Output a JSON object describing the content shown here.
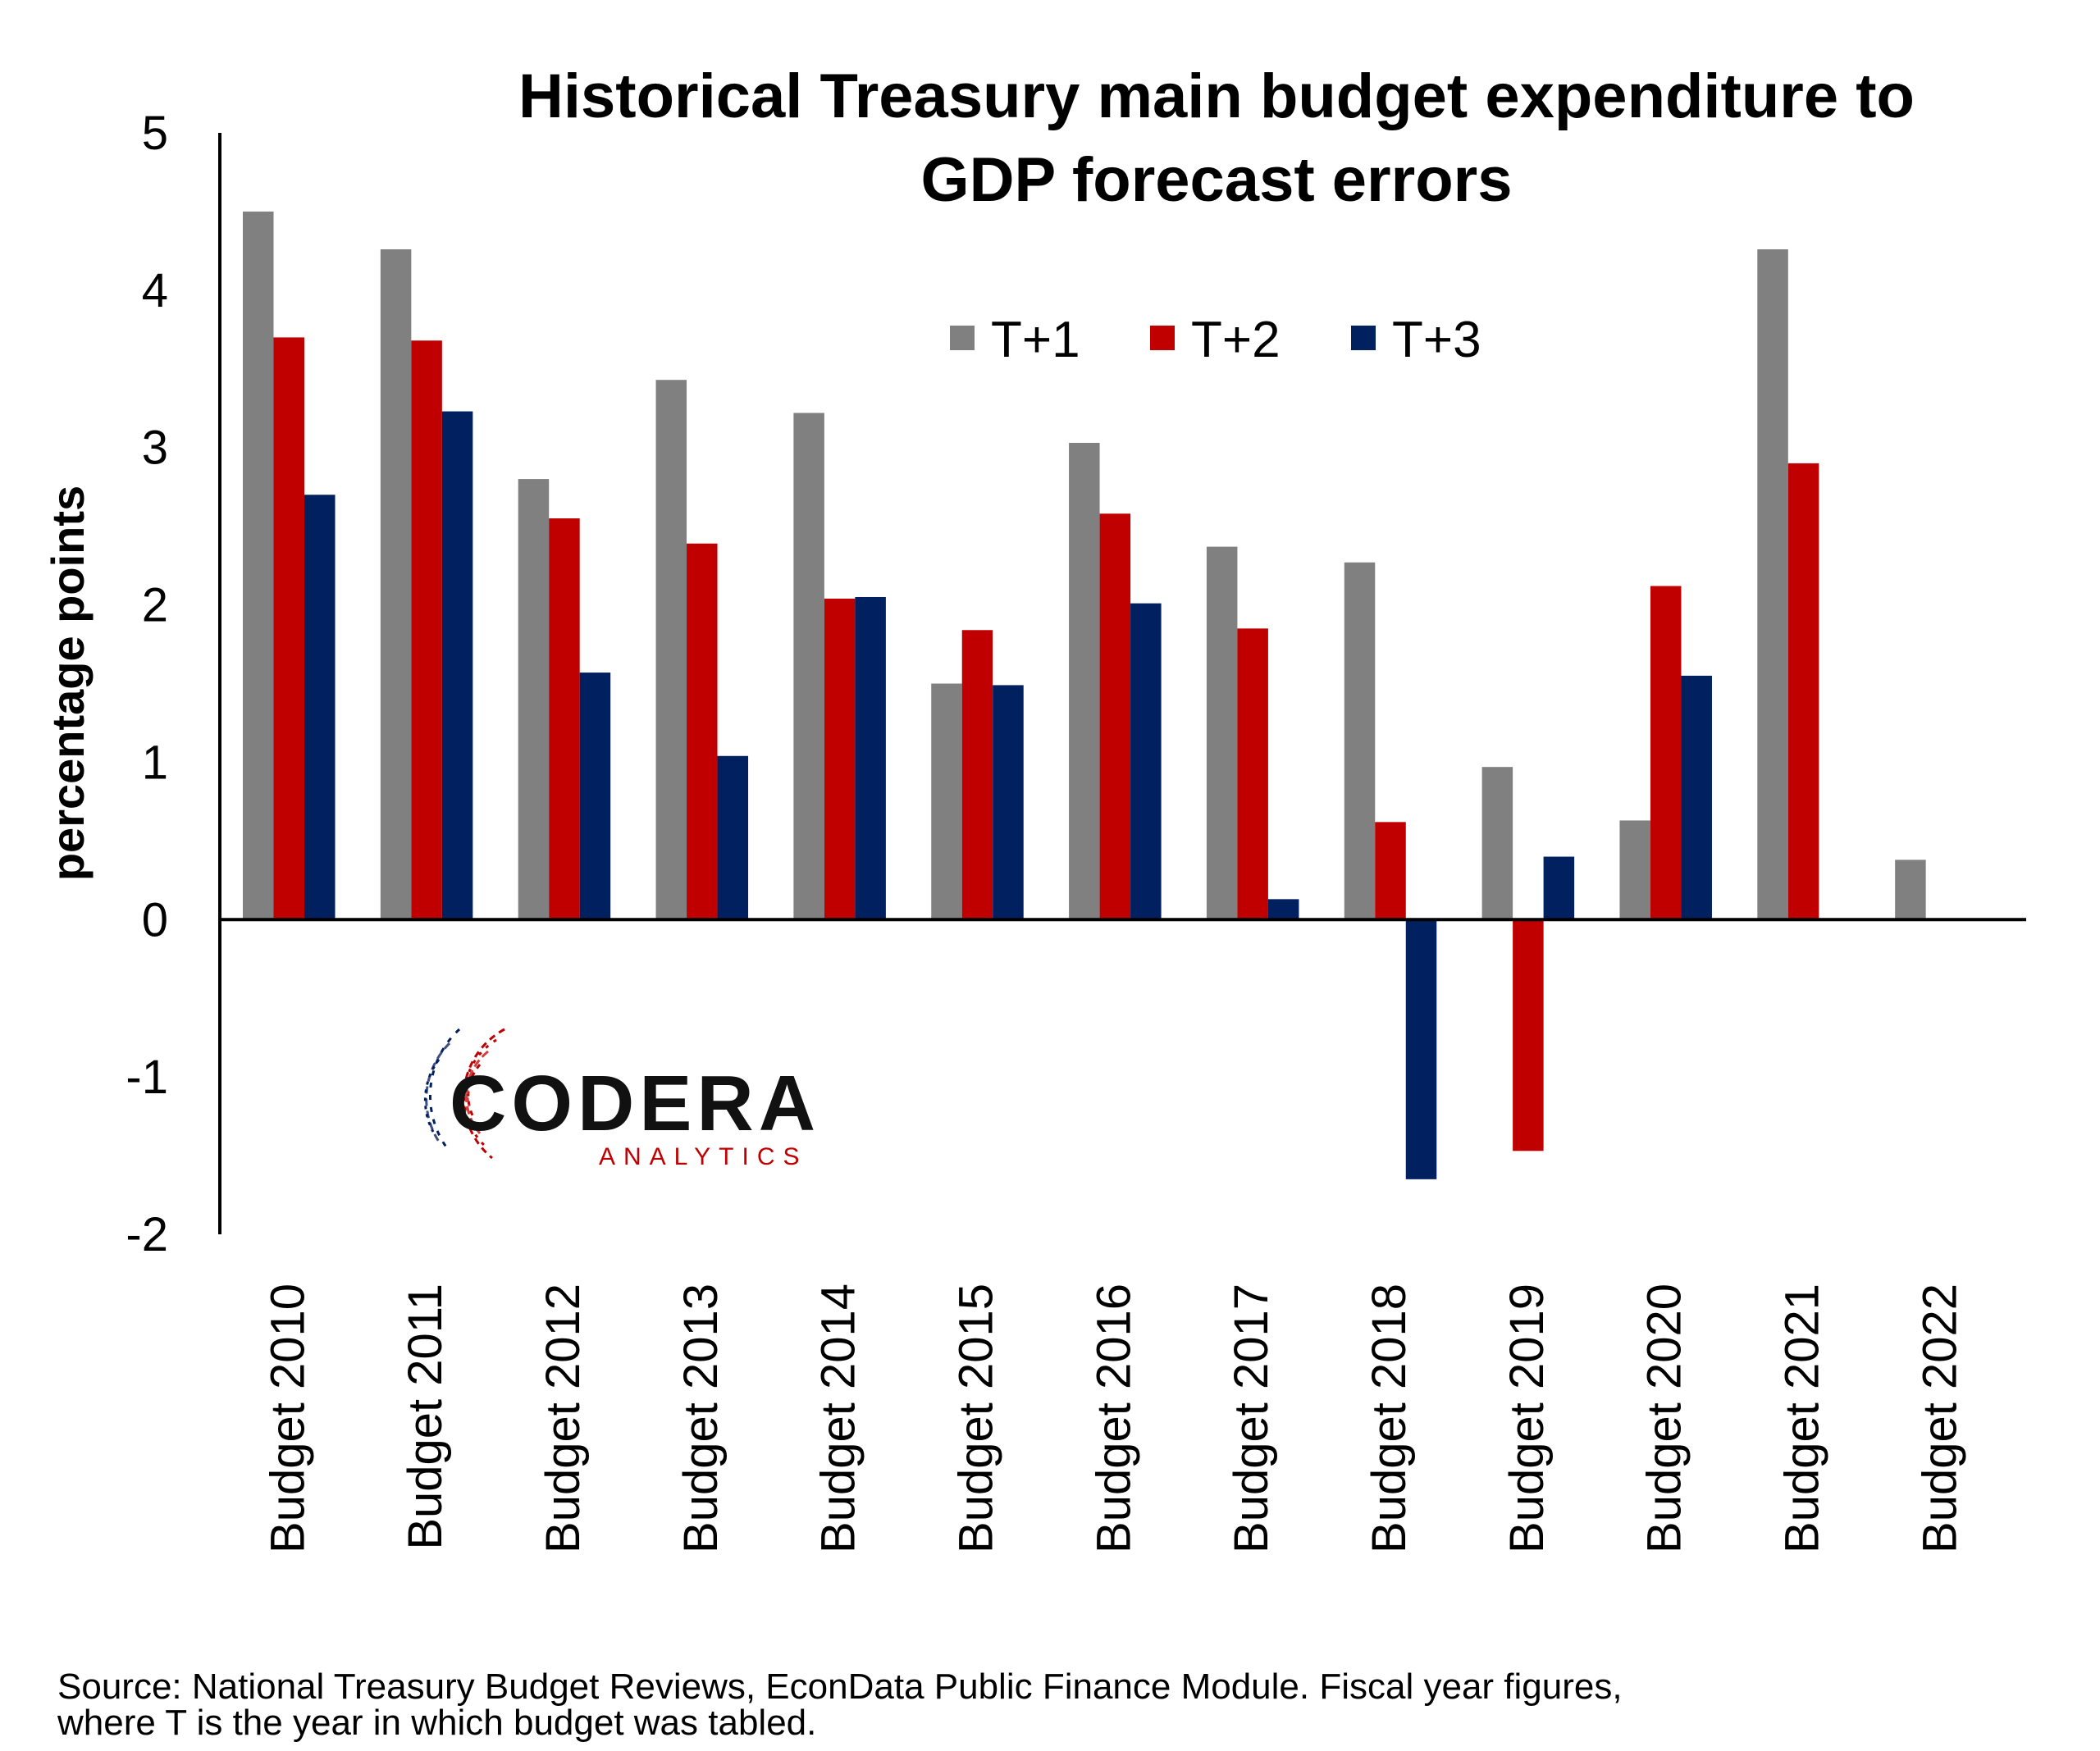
{
  "chart_data": {
    "type": "bar",
    "title_lines": [
      "Historical Treasury main budget expenditure to",
      "GDP forecast errors"
    ],
    "ylabel": "percentage points",
    "xlabel": "",
    "ylim": [
      -2,
      5
    ],
    "yticks": [
      5,
      4,
      3,
      2,
      1,
      0,
      -1,
      -2
    ],
    "grid": false,
    "legend_position": "top-center",
    "categories": [
      "Budget 2010",
      "Budget 2011",
      "Budget 2012",
      "Budget 2013",
      "Budget 2014",
      "Budget 2015",
      "Budget 2016",
      "Budget 2017",
      "Budget 2018",
      "Budget 2019",
      "Budget 2020",
      "Budget 2021",
      "Budget 2022"
    ],
    "series": [
      {
        "name": "T+1",
        "color": "#808080",
        "values": [
          4.5,
          4.26,
          2.8,
          3.43,
          3.22,
          1.5,
          3.03,
          2.37,
          2.27,
          0.97,
          0.63,
          4.26,
          0.38
        ]
      },
      {
        "name": "T+2",
        "color": "#c00000",
        "values": [
          3.7,
          3.68,
          2.55,
          2.39,
          2.04,
          1.84,
          2.58,
          1.85,
          0.62,
          -1.47,
          2.12,
          2.9,
          null
        ]
      },
      {
        "name": "T+3",
        "color": "#002060",
        "values": [
          2.7,
          3.23,
          1.57,
          1.04,
          2.05,
          1.49,
          2.01,
          0.13,
          -1.65,
          0.4,
          1.55,
          null,
          null
        ]
      }
    ]
  },
  "logo": {
    "main": "CODERA",
    "sub": "ANALYTICS"
  },
  "source_note": "Source: National Treasury Budget Reviews, EconData Public Finance Module. Fiscal year figures,\nwhere T is the year in which budget was tabled."
}
